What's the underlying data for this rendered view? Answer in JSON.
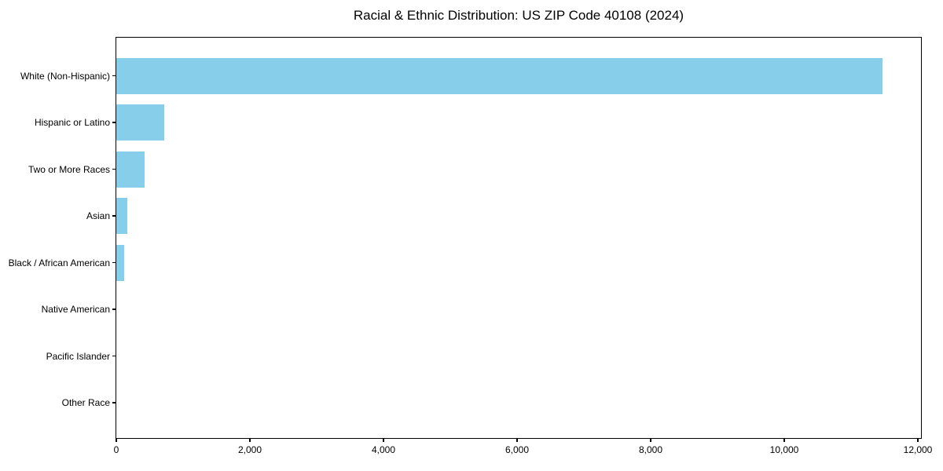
{
  "chart_data": {
    "type": "bar",
    "orientation": "horizontal",
    "title": "Racial & Ethnic Distribution: US ZIP Code 40108 (2024)",
    "categories": [
      "White (Non-Hispanic)",
      "Hispanic or Latino",
      "Two or More Races",
      "Asian",
      "Black / African American",
      "Native American",
      "Pacific Islander",
      "Other Race"
    ],
    "values": [
      11470,
      720,
      420,
      160,
      115,
      0,
      0,
      0
    ],
    "xlabel": "",
    "ylabel": "",
    "xlim": [
      0,
      12050
    ],
    "xticks": [
      0,
      2000,
      4000,
      6000,
      8000,
      10000,
      12000
    ],
    "xtick_labels": [
      "0",
      "2,000",
      "4,000",
      "6,000",
      "8,000",
      "10,000",
      "12,000"
    ],
    "bar_color": "#87CEEB",
    "axis_color": "#000000",
    "text_color": "#000000",
    "grid": false,
    "legend": null
  }
}
